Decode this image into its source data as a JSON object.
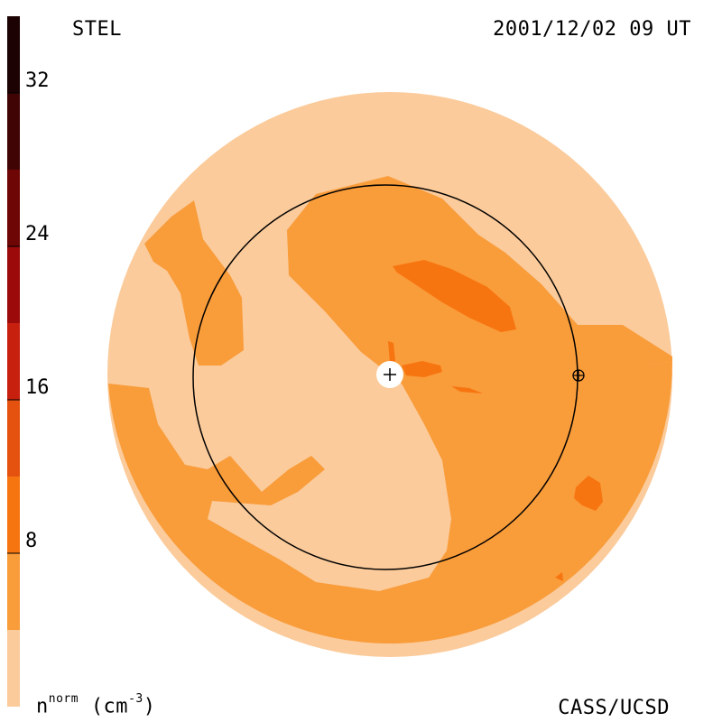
{
  "header": {
    "source": "STEL",
    "timestamp": "2001/12/02 09 UT"
  },
  "footer": {
    "credit": "CASS/UCSD",
    "units_base": "n",
    "units_sup": "norm",
    "units_unit": "(cm",
    "units_unit_sup": "-3",
    "units_close": ")"
  },
  "colorbar": {
    "min": 0,
    "max": 36,
    "levels": [
      {
        "from": 0,
        "to": 4,
        "color": "#fbcb9b"
      },
      {
        "from": 4,
        "to": 8,
        "color": "#f99c3a"
      },
      {
        "from": 8,
        "to": 12,
        "color": "#f77510"
      },
      {
        "from": 12,
        "to": 16,
        "color": "#e5520f"
      },
      {
        "from": 16,
        "to": 20,
        "color": "#c8200f"
      },
      {
        "from": 20,
        "to": 24,
        "color": "#9c0a0a"
      },
      {
        "from": 24,
        "to": 28,
        "color": "#6e0606"
      },
      {
        "from": 28,
        "to": 32,
        "color": "#410404"
      },
      {
        "from": 32,
        "to": 36,
        "color": "#1c0202"
      }
    ],
    "ticks": [
      {
        "value": 8,
        "label": "8"
      },
      {
        "value": 16,
        "label": "16"
      },
      {
        "value": 24,
        "label": "24"
      },
      {
        "value": 32,
        "label": "32"
      }
    ]
  },
  "map": {
    "center_marker": "+",
    "earth_marker": "earth-symbol"
  }
}
